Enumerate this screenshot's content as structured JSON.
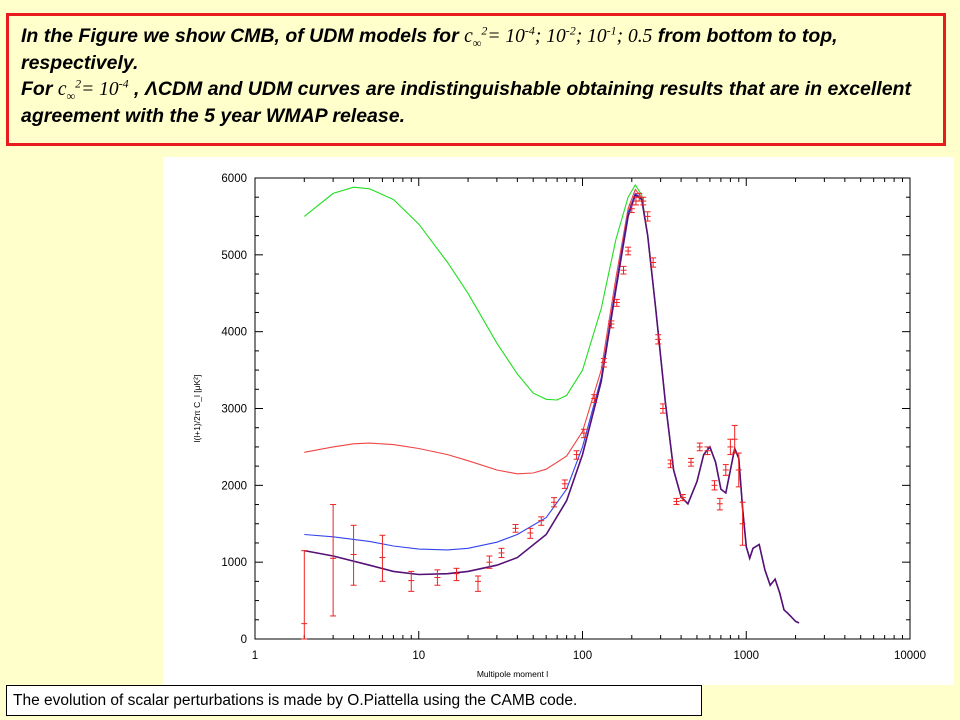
{
  "caption": {
    "line1_pre": "In the Figure we show CMB, of UDM models for ",
    "c_symbol": "c",
    "c_sub": "∞",
    "c_sup": "2",
    "eq": "= ",
    "v1": "10",
    "v1_exp": "-4",
    "sep1": "; ",
    "v2": "10",
    "v2_exp": "-2",
    "sep2": "; ",
    "v3": "10",
    "v3_exp": "-1",
    "sep3": "; ",
    "v4": "0.5",
    "line1_post": " from bottom to top, respectively.",
    "line2_pre": "For ",
    "line2_val": "10",
    "line2_exp": "-4",
    "line2_post": " , ΛCDM and UDM curves are indistinguishable obtaining results that are in excellent agreement with the 5 year WMAP release."
  },
  "footnote": "The evolution of scalar perturbations is made by O.Piattella using the CAMB code.",
  "chart_data": {
    "type": "line",
    "x_scale": "log",
    "xlim": [
      1,
      10000
    ],
    "ylim": [
      0,
      6000
    ],
    "xlabel": "Multipole moment l",
    "ylabel": "l(l+1)/2π C_l [μK²]",
    "x_ticks": [
      "1",
      "10",
      "100",
      "1000",
      "10000"
    ],
    "y_ticks": [
      "0",
      "1000",
      "2000",
      "3000",
      "4000",
      "5000",
      "6000"
    ],
    "grid": false,
    "series": [
      {
        "color": "#22dd22",
        "points": [
          [
            2,
            5500
          ],
          [
            3,
            5800
          ],
          [
            4,
            5880
          ],
          [
            5,
            5860
          ],
          [
            7,
            5720
          ],
          [
            10,
            5400
          ],
          [
            15,
            4900
          ],
          [
            20,
            4500
          ],
          [
            30,
            3850
          ],
          [
            40,
            3450
          ],
          [
            50,
            3200
          ],
          [
            60,
            3120
          ],
          [
            70,
            3110
          ],
          [
            80,
            3170
          ],
          [
            100,
            3500
          ],
          [
            130,
            4300
          ],
          [
            160,
            5200
          ],
          [
            190,
            5750
          ],
          [
            210,
            5910
          ],
          [
            230,
            5780
          ],
          [
            250,
            5250
          ],
          [
            280,
            4300
          ],
          [
            320,
            3100
          ],
          [
            360,
            2200
          ],
          [
            400,
            1850
          ],
          [
            440,
            1760
          ],
          [
            500,
            2050
          ],
          [
            550,
            2400
          ],
          [
            600,
            2500
          ],
          [
            650,
            2300
          ],
          [
            700,
            1950
          ],
          [
            750,
            1900
          ],
          [
            800,
            2200
          ],
          [
            850,
            2480
          ],
          [
            900,
            2350
          ],
          [
            950,
            1700
          ],
          [
            1000,
            1200
          ],
          [
            1050,
            1050
          ],
          [
            1100,
            1180
          ],
          [
            1200,
            1230
          ],
          [
            1300,
            900
          ],
          [
            1400,
            700
          ],
          [
            1500,
            780
          ],
          [
            1600,
            600
          ],
          [
            1700,
            380
          ],
          [
            1800,
            330
          ],
          [
            1900,
            280
          ],
          [
            2000,
            230
          ],
          [
            2100,
            210
          ]
        ]
      },
      {
        "color": "#ee4444",
        "points": [
          [
            2,
            2430
          ],
          [
            3,
            2500
          ],
          [
            4,
            2540
          ],
          [
            5,
            2550
          ],
          [
            7,
            2530
          ],
          [
            10,
            2480
          ],
          [
            15,
            2400
          ],
          [
            20,
            2320
          ],
          [
            30,
            2200
          ],
          [
            40,
            2150
          ],
          [
            50,
            2160
          ],
          [
            60,
            2210
          ],
          [
            80,
            2380
          ],
          [
            100,
            2700
          ],
          [
            130,
            3500
          ],
          [
            160,
            4700
          ],
          [
            190,
            5600
          ],
          [
            210,
            5850
          ],
          [
            230,
            5750
          ],
          [
            250,
            5250
          ],
          [
            280,
            4300
          ],
          [
            320,
            3100
          ],
          [
            360,
            2200
          ],
          [
            400,
            1850
          ],
          [
            440,
            1760
          ],
          [
            500,
            2050
          ],
          [
            550,
            2400
          ],
          [
            600,
            2500
          ],
          [
            650,
            2300
          ],
          [
            700,
            1950
          ],
          [
            750,
            1900
          ],
          [
            800,
            2200
          ],
          [
            850,
            2480
          ],
          [
            900,
            2350
          ],
          [
            950,
            1700
          ],
          [
            1000,
            1200
          ],
          [
            1050,
            1050
          ],
          [
            1100,
            1180
          ],
          [
            1200,
            1230
          ],
          [
            1300,
            900
          ],
          [
            1400,
            700
          ],
          [
            1500,
            780
          ],
          [
            1600,
            600
          ],
          [
            1700,
            380
          ],
          [
            1800,
            330
          ],
          [
            1900,
            280
          ],
          [
            2000,
            230
          ],
          [
            2100,
            210
          ]
        ]
      },
      {
        "color": "#3344ee",
        "points": [
          [
            2,
            1360
          ],
          [
            3,
            1330
          ],
          [
            5,
            1270
          ],
          [
            7,
            1210
          ],
          [
            10,
            1170
          ],
          [
            15,
            1160
          ],
          [
            20,
            1180
          ],
          [
            30,
            1260
          ],
          [
            40,
            1360
          ],
          [
            60,
            1580
          ],
          [
            80,
            1950
          ],
          [
            100,
            2500
          ],
          [
            130,
            3400
          ],
          [
            160,
            4600
          ],
          [
            190,
            5550
          ],
          [
            210,
            5800
          ],
          [
            230,
            5730
          ],
          [
            250,
            5250
          ],
          [
            280,
            4300
          ],
          [
            320,
            3100
          ],
          [
            360,
            2200
          ],
          [
            400,
            1850
          ],
          [
            440,
            1760
          ],
          [
            500,
            2050
          ],
          [
            550,
            2400
          ],
          [
            600,
            2500
          ],
          [
            650,
            2300
          ],
          [
            700,
            1950
          ],
          [
            750,
            1900
          ],
          [
            800,
            2200
          ],
          [
            850,
            2480
          ],
          [
            900,
            2350
          ],
          [
            950,
            1700
          ],
          [
            1000,
            1200
          ],
          [
            1050,
            1050
          ],
          [
            1100,
            1180
          ],
          [
            1200,
            1230
          ],
          [
            1300,
            900
          ],
          [
            1400,
            700
          ],
          [
            1500,
            780
          ],
          [
            1600,
            600
          ],
          [
            1700,
            380
          ],
          [
            1800,
            330
          ],
          [
            1900,
            280
          ],
          [
            2000,
            230
          ],
          [
            2100,
            210
          ]
        ]
      },
      {
        "color": "#551177",
        "points": [
          [
            2,
            1150
          ],
          [
            3,
            1080
          ],
          [
            5,
            960
          ],
          [
            7,
            880
          ],
          [
            10,
            840
          ],
          [
            15,
            850
          ],
          [
            20,
            880
          ],
          [
            30,
            960
          ],
          [
            40,
            1060
          ],
          [
            60,
            1360
          ],
          [
            80,
            1800
          ],
          [
            100,
            2400
          ],
          [
            130,
            3350
          ],
          [
            160,
            4550
          ],
          [
            190,
            5500
          ],
          [
            210,
            5780
          ],
          [
            230,
            5720
          ],
          [
            250,
            5250
          ],
          [
            280,
            4300
          ],
          [
            320,
            3100
          ],
          [
            360,
            2200
          ],
          [
            400,
            1850
          ],
          [
            440,
            1760
          ],
          [
            500,
            2050
          ],
          [
            550,
            2400
          ],
          [
            600,
            2500
          ],
          [
            650,
            2300
          ],
          [
            700,
            1950
          ],
          [
            750,
            1900
          ],
          [
            800,
            2200
          ],
          [
            850,
            2480
          ],
          [
            900,
            2350
          ],
          [
            950,
            1700
          ],
          [
            1000,
            1200
          ],
          [
            1050,
            1050
          ],
          [
            1100,
            1180
          ],
          [
            1200,
            1230
          ],
          [
            1300,
            900
          ],
          [
            1400,
            700
          ],
          [
            1500,
            780
          ],
          [
            1600,
            600
          ],
          [
            1700,
            380
          ],
          [
            1800,
            330
          ],
          [
            1900,
            280
          ],
          [
            2000,
            230
          ],
          [
            2100,
            210
          ]
        ]
      }
    ],
    "error_bars": {
      "color": "#ee2222",
      "points": [
        [
          2,
          200,
          1150,
          0
        ],
        [
          3,
          1050,
          1750,
          300
        ],
        [
          4,
          1100,
          1480,
          700
        ],
        [
          6,
          1060,
          1350,
          750
        ],
        [
          9,
          760,
          880,
          620
        ],
        [
          13,
          800,
          900,
          700
        ],
        [
          17,
          850,
          920,
          760
        ],
        [
          23,
          750,
          820,
          620
        ],
        [
          27,
          1000,
          1080,
          920
        ],
        [
          32,
          1120,
          1180,
          1060
        ],
        [
          39,
          1440,
          1490,
          1390
        ],
        [
          48,
          1380,
          1440,
          1310
        ],
        [
          56,
          1540,
          1590,
          1480
        ],
        [
          67,
          1780,
          1840,
          1720
        ],
        [
          78,
          2020,
          2070,
          1960
        ],
        [
          92,
          2400,
          2450,
          2340
        ],
        [
          102,
          2680,
          2730,
          2620
        ],
        [
          118,
          3130,
          3180,
          3080
        ],
        [
          135,
          3600,
          3650,
          3540
        ],
        [
          150,
          4100,
          4140,
          4050
        ],
        [
          162,
          4380,
          4420,
          4330
        ],
        [
          178,
          4800,
          4850,
          4750
        ],
        [
          190,
          5050,
          5100,
          5000
        ],
        [
          200,
          5600,
          5650,
          5550
        ],
        [
          212,
          5700,
          5750,
          5650
        ],
        [
          222,
          5750,
          5800,
          5700
        ],
        [
          235,
          5700,
          5750,
          5650
        ],
        [
          250,
          5500,
          5560,
          5440
        ],
        [
          270,
          4900,
          4960,
          4840
        ],
        [
          290,
          3900,
          3960,
          3840
        ],
        [
          310,
          3000,
          3060,
          2940
        ],
        [
          345,
          2280,
          2330,
          2230
        ],
        [
          375,
          1790,
          1830,
          1750
        ],
        [
          410,
          1840,
          1880,
          1800
        ],
        [
          460,
          2300,
          2350,
          2250
        ],
        [
          520,
          2500,
          2550,
          2450
        ],
        [
          580,
          2450,
          2500,
          2400
        ],
        [
          640,
          2000,
          2060,
          1940
        ],
        [
          690,
          1760,
          1830,
          1680
        ],
        [
          750,
          2200,
          2270,
          2130
        ],
        [
          800,
          2500,
          2600,
          2400
        ],
        [
          850,
          2600,
          2780,
          2420
        ],
        [
          900,
          2200,
          2420,
          1980
        ],
        [
          950,
          1500,
          1780,
          1220
        ]
      ]
    }
  }
}
